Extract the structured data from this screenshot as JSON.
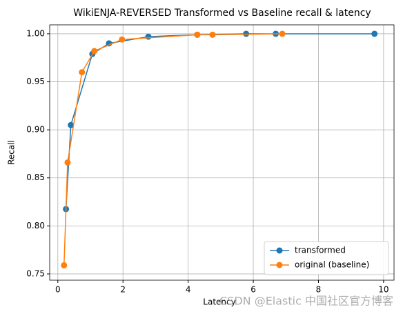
{
  "chart_data": {
    "type": "line",
    "title": "WikiENJA-REVERSED Transformed vs Baseline recall & latency",
    "x_label": "Latency",
    "y_label": "Recall",
    "series": [
      {
        "name": "transformed",
        "color": "#1f77b4",
        "x": [
          0.25,
          0.4,
          1.06,
          1.57,
          2.78,
          4.28,
          5.78,
          6.69,
          9.72
        ],
        "values": [
          0.8175,
          0.905,
          0.979,
          0.99,
          0.997,
          0.999,
          1.0,
          1.0,
          1.0
        ]
      },
      {
        "name": "original (baseline)",
        "color": "#ff7f0e",
        "x": [
          0.19,
          0.3,
          0.74,
          1.12,
          1.97,
          4.28,
          4.75,
          6.89
        ],
        "values": [
          0.759,
          0.866,
          0.96,
          0.982,
          0.994,
          0.999,
          0.999,
          1.0
        ]
      }
    ],
    "xlim": [
      -0.25,
      10.32
    ],
    "ylim": [
      0.7435,
      1.0093
    ],
    "xticks": [
      0,
      2,
      4,
      6,
      8,
      10
    ],
    "yticks": [
      0.75,
      {
        "value": 0.8,
        "label": "0.80"
      },
      0.85,
      {
        "value": 0.9,
        "label": "0.90"
      },
      0.95,
      {
        "value": 1.0,
        "label": "1.00"
      }
    ],
    "grid": true,
    "legend": "lower right",
    "watermark": "CSDN @Elastic 中国社区官方博客"
  }
}
